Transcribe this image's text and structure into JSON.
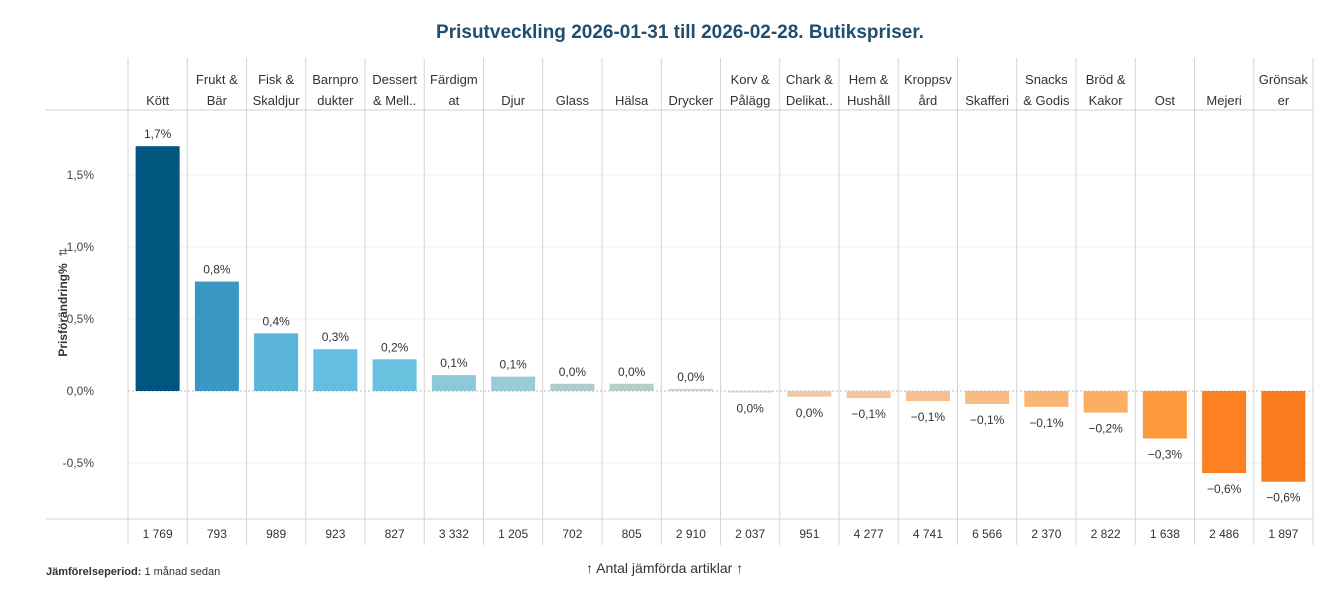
{
  "chart_data": {
    "type": "bar",
    "title": "Prisutveckling 2026-01-31 till 2026-02-28. Butikspriser.",
    "ylabel": "Prisförändring%",
    "ylim": [
      -0.9,
      1.9
    ],
    "yticks": [
      1.5,
      1.0,
      0.5,
      0.0,
      -0.5
    ],
    "ytick_labels": [
      "1,5%",
      "1,0%",
      "0,5%",
      "0,0%",
      "-0,5%"
    ],
    "grid": true,
    "categories": [
      "Kött",
      "Frukt & Bär",
      "Fisk & Skaldjur",
      "Barnprodukter",
      "Dessert & Mell..",
      "Färdigmat",
      "Djur",
      "Glass",
      "Hälsa",
      "Drycker",
      "Korv & Pålägg",
      "Chark & Delikat..",
      "Hem & Hushåll",
      "Kroppsvård",
      "Skafferi",
      "Snacks & Godis",
      "Bröd & Kakor",
      "Ost",
      "Mejeri",
      "Grönsaker"
    ],
    "header_lines": [
      [
        "",
        "Kött"
      ],
      [
        "Frukt &",
        "Bär"
      ],
      [
        "Fisk &",
        "Skaldjur"
      ],
      [
        "Barnpro",
        "dukter"
      ],
      [
        "Dessert",
        "& Mell.."
      ],
      [
        "Färdigm",
        "at"
      ],
      [
        "",
        "Djur"
      ],
      [
        "",
        "Glass"
      ],
      [
        "",
        "Hälsa"
      ],
      [
        "",
        "Drycker"
      ],
      [
        "Korv &",
        "Pålägg"
      ],
      [
        "Chark &",
        "Delikat.."
      ],
      [
        "Hem &",
        "Hushåll"
      ],
      [
        "Kroppsv",
        "ård"
      ],
      [
        "",
        "Skafferi"
      ],
      [
        "Snacks",
        "& Godis"
      ],
      [
        "Bröd &",
        "Kakor"
      ],
      [
        "",
        "Ost"
      ],
      [
        "",
        "Mejeri"
      ],
      [
        "Grönsak",
        "er"
      ]
    ],
    "values": [
      1.7,
      0.76,
      0.4,
      0.29,
      0.22,
      0.11,
      0.1,
      0.05,
      0.05,
      0.014,
      -0.01,
      -0.04,
      -0.05,
      -0.07,
      -0.09,
      -0.11,
      -0.15,
      -0.33,
      -0.57,
      -0.63
    ],
    "data_labels": [
      "1,7%",
      "0,8%",
      "0,4%",
      "0,3%",
      "0,2%",
      "0,1%",
      "0,1%",
      "0,0%",
      "0,0%",
      "0,0%",
      "0,0%",
      "0,0%",
      "−0,1%",
      "−0,1%",
      "−0,1%",
      "−0,1%",
      "−0,2%",
      "−0,3%",
      "−0,6%",
      "−0,6%"
    ],
    "counts": [
      "1 769",
      "793",
      "989",
      "923",
      "827",
      "3 332",
      "1 205",
      "702",
      "805",
      "2 910",
      "2 037",
      "951",
      "4 277",
      "4 741",
      "6 566",
      "2 370",
      "2 822",
      "1 638",
      "2 486",
      "1 897"
    ],
    "colors": [
      "#00567f",
      "#3a97c4",
      "#5ab4d9",
      "#65bde0",
      "#6ac0df",
      "#8fc8d9",
      "#9ccbd8",
      "#b0cbcb",
      "#b6cdc8",
      "#c7d3c4",
      "#e2d0b8",
      "#eec9a5",
      "#f2c59c",
      "#f5bf8e",
      "#f8bb83",
      "#fab574",
      "#fcae63",
      "#fd9a3e",
      "#fd8122",
      "#fb7a1c"
    ]
  },
  "footer": {
    "period_label": "Jämförelseperiod:",
    "period_value": "1 månad sedan",
    "count_caption": "↑ Antal jämförda artiklar ↑"
  }
}
